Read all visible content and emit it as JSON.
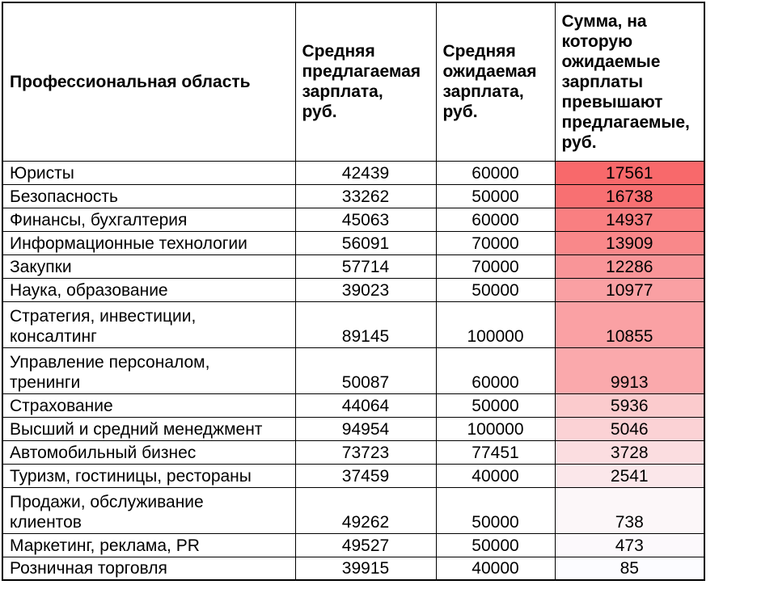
{
  "table": {
    "columns": [
      {
        "label": "Профессиональная область"
      },
      {
        "label": "Средняя\nпредлагаемая\nзарплата,\nруб."
      },
      {
        "label": "Средняя\nожидаемая\nзарплата,\nруб."
      },
      {
        "label": "Сумма, на\nкоторую\nожидаемые\nзарплаты\nпревышают\nпредлагаемые,\nруб."
      }
    ],
    "rows": [
      {
        "area": "Юристы",
        "offered": "42439",
        "expected": "60000",
        "diff": "17561",
        "diff_bg": "#F8696B"
      },
      {
        "area": "Безопасность",
        "offered": "33262",
        "expected": "50000",
        "diff": "16738",
        "diff_bg": "#F87072"
      },
      {
        "area": "Финансы, бухгалтерия",
        "offered": "45063",
        "expected": "60000",
        "diff": "14937",
        "diff_bg": "#F97F81"
      },
      {
        "area": "Информационные технологии",
        "offered": "56091",
        "expected": "70000",
        "diff": "13909",
        "diff_bg": "#F9888A"
      },
      {
        "area": "Закупки",
        "offered": "57714",
        "expected": "70000",
        "diff": "12286",
        "diff_bg": "#F99598"
      },
      {
        "area": "Наука, образование",
        "offered": "39023",
        "expected": "50000",
        "diff": "10977",
        "diff_bg": "#FAA0A3"
      },
      {
        "area": "Стратегия, инвестиции,\nконсалтинг",
        "offered": "89145",
        "expected": "100000",
        "diff": "10855",
        "diff_bg": "#FAA1A4"
      },
      {
        "area": "Управление персоналом,\nтренинги",
        "offered": "50087",
        "expected": "60000",
        "diff": "9913",
        "diff_bg": "#FAA9AC"
      },
      {
        "area": "Страхование",
        "offered": "44064",
        "expected": "50000",
        "diff": "5936",
        "diff_bg": "#FBCBCD"
      },
      {
        "area": "Высший и средний менеджмент",
        "offered": "94954",
        "expected": "100000",
        "diff": "5046",
        "diff_bg": "#FBD2D5"
      },
      {
        "area": "Автомобильный бизнес",
        "offered": "73723",
        "expected": "77451",
        "diff": "3728",
        "diff_bg": "#FBDDE0"
      },
      {
        "area": "Туризм, гостиницы, рестораны",
        "offered": "37459",
        "expected": "40000",
        "diff": "2541",
        "diff_bg": "#FBE7EA"
      },
      {
        "area": "Продажи, обслуживание\nклиентов",
        "offered": "49262",
        "expected": "50000",
        "diff": "738",
        "diff_bg": "#FCF7F9"
      },
      {
        "area": "Маркетинг, реклама, PR",
        "offered": "49527",
        "expected": "50000",
        "diff": "473",
        "diff_bg": "#FCF9FC"
      },
      {
        "area": "Розничная торговля",
        "offered": "39915",
        "expected": "40000",
        "diff": "85",
        "diff_bg": "#FCFCFF"
      }
    ]
  },
  "colors": {
    "border": "#000000",
    "text": "#000000",
    "header_bg": "#FFFFFF",
    "heat_scale_max": "#F8696B",
    "heat_scale_min": "#FCFCFF"
  },
  "chart_data": {
    "type": "table",
    "title": "",
    "columns": [
      "Профессиональная область",
      "Средняя предлагаемая зарплата, руб.",
      "Средняя ожидаемая зарплата, руб.",
      "Сумма, на которую ожидаемые зарплаты превышают предлагаемые, руб."
    ],
    "rows": [
      [
        "Юристы",
        42439,
        60000,
        17561
      ],
      [
        "Безопасность",
        33262,
        50000,
        16738
      ],
      [
        "Финансы, бухгалтерия",
        45063,
        60000,
        14937
      ],
      [
        "Информационные технологии",
        56091,
        70000,
        13909
      ],
      [
        "Закупки",
        57714,
        70000,
        12286
      ],
      [
        "Наука, образование",
        39023,
        50000,
        10977
      ],
      [
        "Стратегия, инвестиции, консалтинг",
        89145,
        100000,
        10855
      ],
      [
        "Управление персоналом, тренинги",
        50087,
        60000,
        9913
      ],
      [
        "Страхование",
        44064,
        50000,
        5936
      ],
      [
        "Высший и средний менеджмент",
        94954,
        100000,
        5046
      ],
      [
        "Автомобильный бизнес",
        73723,
        77451,
        3728
      ],
      [
        "Туризм, гостиницы, рестораны",
        37459,
        40000,
        2541
      ],
      [
        "Продажи, обслуживание клиентов",
        49262,
        50000,
        738
      ],
      [
        "Маркетинг, реклама, PR",
        49527,
        50000,
        473
      ],
      [
        "Розничная торговля",
        39915,
        40000,
        85
      ]
    ],
    "conditional_format": {
      "applies_to_column": 3,
      "style": "2-color-scale",
      "min_value": 85,
      "max_value": 17561,
      "min_color": "#FCFCFF",
      "max_color": "#F8696B"
    }
  }
}
